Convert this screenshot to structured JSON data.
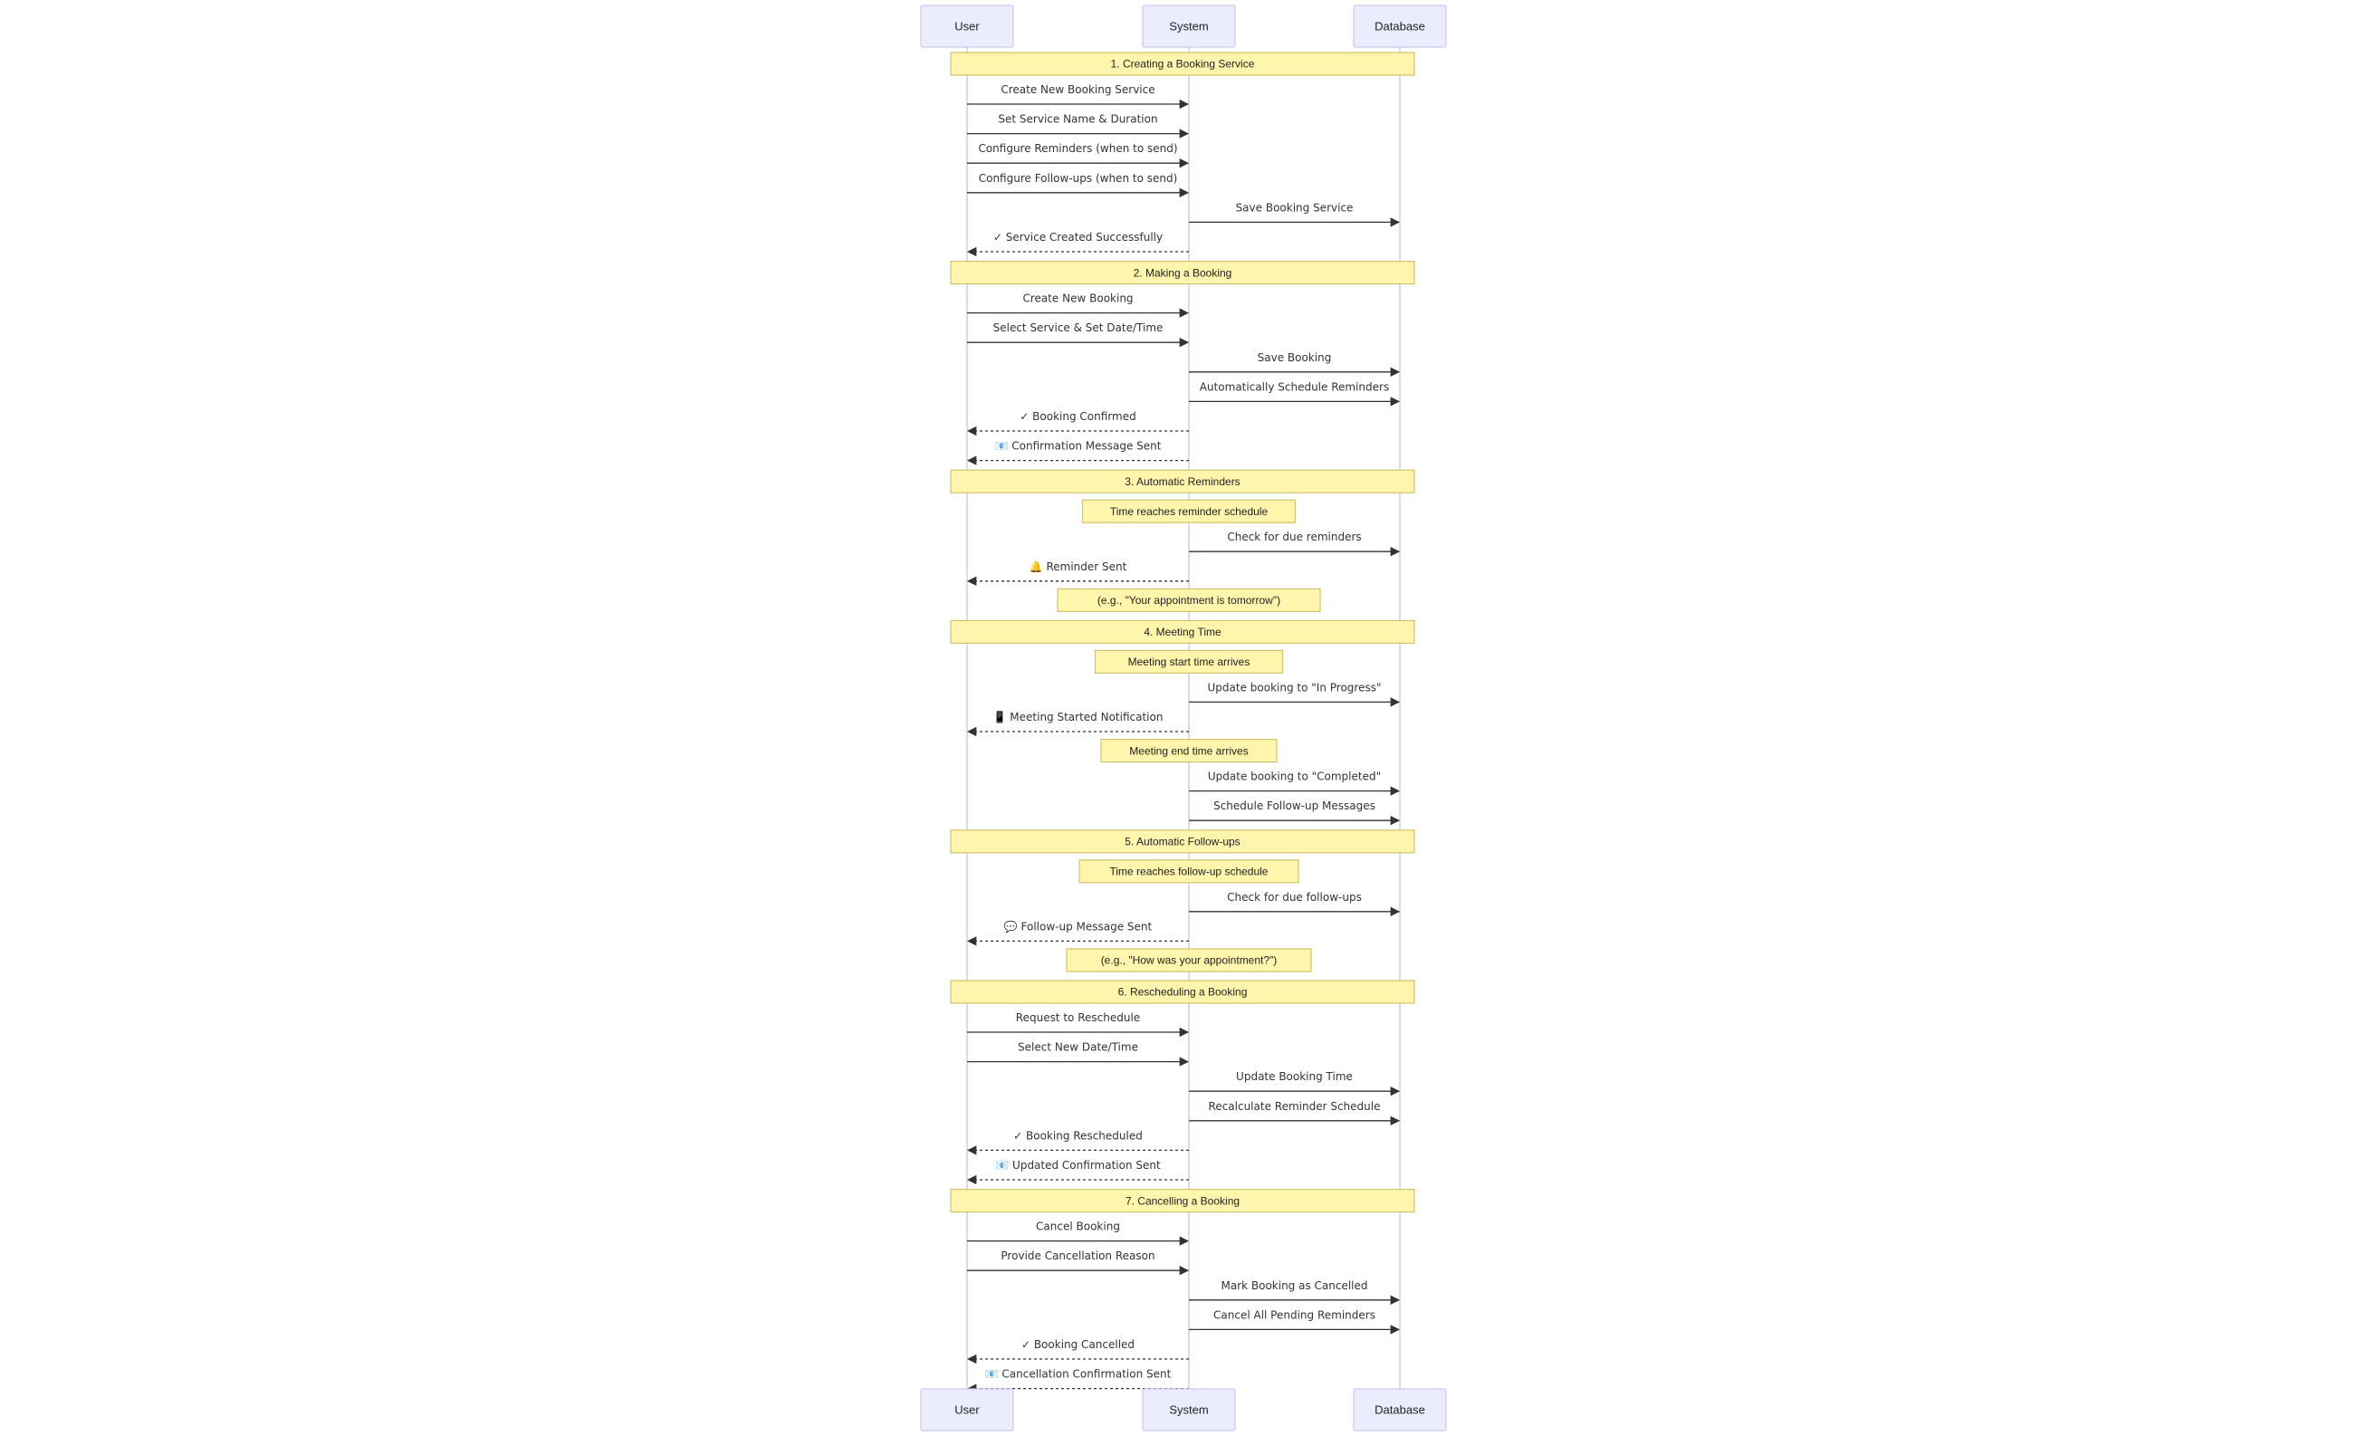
{
  "actors": [
    {
      "id": "user",
      "label": "User"
    },
    {
      "id": "system",
      "label": "System"
    },
    {
      "id": "database",
      "label": "Database"
    }
  ],
  "rows": [
    {
      "kind": "section",
      "text": "1. Creating a Booking Service"
    },
    {
      "kind": "msg",
      "from": "user",
      "to": "system",
      "style": "solid",
      "text": "Create New Booking Service"
    },
    {
      "kind": "msg",
      "from": "user",
      "to": "system",
      "style": "solid",
      "text": "Set Service Name & Duration"
    },
    {
      "kind": "msg",
      "from": "user",
      "to": "system",
      "style": "solid",
      "text": "Configure Reminders (when to send)"
    },
    {
      "kind": "msg",
      "from": "user",
      "to": "system",
      "style": "solid",
      "text": "Configure Follow-ups (when to send)"
    },
    {
      "kind": "msg",
      "from": "system",
      "to": "database",
      "style": "solid",
      "text": "Save Booking Service"
    },
    {
      "kind": "msg",
      "from": "system",
      "to": "user",
      "style": "dashed",
      "text": "✓ Service Created Successfully"
    },
    {
      "kind": "section",
      "text": "2. Making a Booking"
    },
    {
      "kind": "msg",
      "from": "user",
      "to": "system",
      "style": "solid",
      "text": "Create New Booking"
    },
    {
      "kind": "msg",
      "from": "user",
      "to": "system",
      "style": "solid",
      "text": "Select Service & Set Date/Time"
    },
    {
      "kind": "msg",
      "from": "system",
      "to": "database",
      "style": "solid",
      "text": "Save Booking"
    },
    {
      "kind": "msg",
      "from": "system",
      "to": "database",
      "style": "solid",
      "text": "Automatically Schedule Reminders"
    },
    {
      "kind": "msg",
      "from": "system",
      "to": "user",
      "style": "dashed",
      "text": "✓ Booking Confirmed"
    },
    {
      "kind": "msg",
      "from": "system",
      "to": "user",
      "style": "dashed",
      "text": "📧 Confirmation Message Sent"
    },
    {
      "kind": "section",
      "text": "3. Automatic Reminders"
    },
    {
      "kind": "note",
      "text": "Time reaches reminder schedule"
    },
    {
      "kind": "msg",
      "from": "system",
      "to": "database",
      "style": "solid",
      "text": "Check for due reminders"
    },
    {
      "kind": "msg",
      "from": "system",
      "to": "user",
      "style": "dashed",
      "text": "🔔 Reminder Sent"
    },
    {
      "kind": "note",
      "text": "(e.g., \"Your appointment is tomorrow\")"
    },
    {
      "kind": "section",
      "text": "4. Meeting Time"
    },
    {
      "kind": "note",
      "text": "Meeting start time arrives"
    },
    {
      "kind": "msg",
      "from": "system",
      "to": "database",
      "style": "solid",
      "text": "Update booking to \"In Progress\""
    },
    {
      "kind": "msg",
      "from": "system",
      "to": "user",
      "style": "dashed",
      "text": "📱 Meeting Started Notification"
    },
    {
      "kind": "note",
      "text": "Meeting end time arrives"
    },
    {
      "kind": "msg",
      "from": "system",
      "to": "database",
      "style": "solid",
      "text": "Update booking to \"Completed\""
    },
    {
      "kind": "msg",
      "from": "system",
      "to": "database",
      "style": "solid",
      "text": "Schedule Follow-up Messages"
    },
    {
      "kind": "section",
      "text": "5. Automatic Follow-ups"
    },
    {
      "kind": "note",
      "text": "Time reaches follow-up schedule"
    },
    {
      "kind": "msg",
      "from": "system",
      "to": "database",
      "style": "solid",
      "text": "Check for due follow-ups"
    },
    {
      "kind": "msg",
      "from": "system",
      "to": "user",
      "style": "dashed",
      "text": "💬 Follow-up Message Sent"
    },
    {
      "kind": "note",
      "text": "(e.g., \"How was your appointment?\")"
    },
    {
      "kind": "section",
      "text": "6. Rescheduling a Booking"
    },
    {
      "kind": "msg",
      "from": "user",
      "to": "system",
      "style": "solid",
      "text": "Request to Reschedule"
    },
    {
      "kind": "msg",
      "from": "user",
      "to": "system",
      "style": "solid",
      "text": "Select New Date/Time"
    },
    {
      "kind": "msg",
      "from": "system",
      "to": "database",
      "style": "solid",
      "text": "Update Booking Time"
    },
    {
      "kind": "msg",
      "from": "system",
      "to": "database",
      "style": "solid",
      "text": "Recalculate Reminder Schedule"
    },
    {
      "kind": "msg",
      "from": "system",
      "to": "user",
      "style": "dashed",
      "text": "✓ Booking Rescheduled"
    },
    {
      "kind": "msg",
      "from": "system",
      "to": "user",
      "style": "dashed",
      "text": "📧 Updated Confirmation Sent"
    },
    {
      "kind": "section",
      "text": "7. Cancelling a Booking"
    },
    {
      "kind": "msg",
      "from": "user",
      "to": "system",
      "style": "solid",
      "text": "Cancel Booking"
    },
    {
      "kind": "msg",
      "from": "user",
      "to": "system",
      "style": "solid",
      "text": "Provide Cancellation Reason"
    },
    {
      "kind": "msg",
      "from": "system",
      "to": "database",
      "style": "solid",
      "text": "Mark Booking as Cancelled"
    },
    {
      "kind": "msg",
      "from": "system",
      "to": "database",
      "style": "solid",
      "text": "Cancel All Pending Reminders"
    },
    {
      "kind": "msg",
      "from": "system",
      "to": "user",
      "style": "dashed",
      "text": "✓ Booking Cancelled"
    },
    {
      "kind": "msg",
      "from": "system",
      "to": "user",
      "style": "dashed",
      "text": "📧 Cancellation Confirmation Sent"
    }
  ],
  "colors": {
    "actor_fill": "#ececff",
    "actor_stroke": "#c9c9f0",
    "note_fill": "#fff5ad",
    "note_stroke": "#cfc56a",
    "lifeline": "#c9c9e8",
    "message": "#333333"
  }
}
